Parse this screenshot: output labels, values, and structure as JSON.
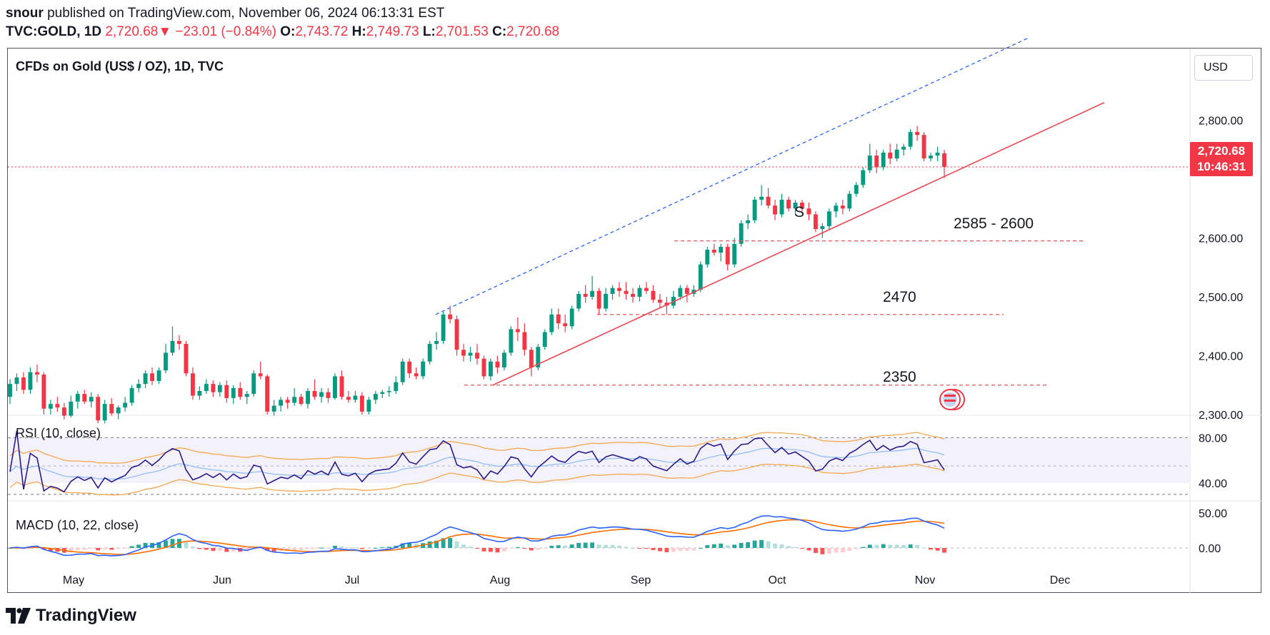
{
  "header": {
    "author": "snour",
    "published": "published on TradingView.com, November 06, 2024 06:13:31 EST",
    "symbol": "TVC:GOLD, 1D",
    "last": "2,720.68",
    "change": "−23.01 (−0.84%)",
    "o_label": "O:",
    "o": "2,743.72",
    "h_label": "H:",
    "h": "2,749.73",
    "l_label": "L:",
    "l": "2,701.53",
    "c_label": "C:",
    "c": "2,720.68"
  },
  "chart_title": "CFDs on Gold (US$ / OZ), 1D, TVC",
  "currency_button": "USD",
  "price_tag": {
    "price": "2,720.68",
    "countdown": "10:46:31"
  },
  "rsi_label": "RSI (10, close)",
  "macd_label": "MACD (10, 22, close)",
  "annotations": {
    "s_mark": "S",
    "zone1": "2585 - 2600",
    "zone2": "2470",
    "zone3": "2350"
  },
  "logo_text": "TradingView",
  "colors": {
    "up": "#089981",
    "down": "#f23645",
    "rsi": "#2a1a8c",
    "band": "#f7a650",
    "macd": "#2962ff",
    "signal": "#ff6d00"
  },
  "chart_data": {
    "type": "candlestick",
    "price_axis": {
      "ticks": [
        2300,
        2400,
        2500,
        2600,
        2700,
        2800
      ],
      "tick_labels": [
        "2,300.00",
        "2,400.00",
        "2,500.00",
        "2,600.00",
        "2,800.00"
      ],
      "range": [
        2265,
        2855
      ]
    },
    "time_axis": [
      "May",
      "Jun",
      "Jul",
      "Aug",
      "Sep",
      "Oct",
      "Nov",
      "Dec"
    ],
    "rsi_axis": [
      "80.00",
      "40.00"
    ],
    "macd_axis": [
      "50.00",
      "0.00"
    ],
    "candles_ohlc": [
      [
        2330,
        2360,
        2318,
        2352
      ],
      [
        2352,
        2370,
        2340,
        2363
      ],
      [
        2363,
        2372,
        2335,
        2342
      ],
      [
        2342,
        2380,
        2335,
        2372
      ],
      [
        2372,
        2385,
        2355,
        2368
      ],
      [
        2368,
        2372,
        2300,
        2310
      ],
      [
        2310,
        2325,
        2300,
        2318
      ],
      [
        2318,
        2330,
        2305,
        2312
      ],
      [
        2312,
        2320,
        2292,
        2298
      ],
      [
        2298,
        2332,
        2295,
        2322
      ],
      [
        2322,
        2340,
        2310,
        2335
      ],
      [
        2335,
        2342,
        2318,
        2322
      ],
      [
        2322,
        2338,
        2312,
        2330
      ],
      [
        2330,
        2335,
        2285,
        2290
      ],
      [
        2290,
        2325,
        2285,
        2318
      ],
      [
        2318,
        2328,
        2298,
        2302
      ],
      [
        2302,
        2315,
        2292,
        2312
      ],
      [
        2312,
        2330,
        2305,
        2320
      ],
      [
        2320,
        2350,
        2315,
        2345
      ],
      [
        2345,
        2360,
        2338,
        2352
      ],
      [
        2352,
        2375,
        2345,
        2370
      ],
      [
        2370,
        2380,
        2350,
        2357
      ],
      [
        2357,
        2380,
        2352,
        2375
      ],
      [
        2375,
        2420,
        2370,
        2405
      ],
      [
        2405,
        2450,
        2400,
        2425
      ],
      [
        2425,
        2435,
        2410,
        2420
      ],
      [
        2420,
        2425,
        2365,
        2370
      ],
      [
        2370,
        2380,
        2325,
        2332
      ],
      [
        2332,
        2348,
        2325,
        2340
      ],
      [
        2340,
        2360,
        2335,
        2352
      ],
      [
        2352,
        2358,
        2330,
        2338
      ],
      [
        2338,
        2355,
        2330,
        2350
      ],
      [
        2350,
        2358,
        2320,
        2328
      ],
      [
        2328,
        2350,
        2318,
        2345
      ],
      [
        2345,
        2355,
        2325,
        2330
      ],
      [
        2330,
        2340,
        2318,
        2335
      ],
      [
        2335,
        2375,
        2330,
        2370
      ],
      [
        2370,
        2390,
        2360,
        2365
      ],
      [
        2365,
        2368,
        2300,
        2305
      ],
      [
        2305,
        2325,
        2298,
        2315
      ],
      [
        2315,
        2330,
        2305,
        2325
      ],
      [
        2325,
        2330,
        2310,
        2320
      ],
      [
        2320,
        2345,
        2315,
        2330
      ],
      [
        2330,
        2335,
        2315,
        2318
      ],
      [
        2318,
        2345,
        2310,
        2340
      ],
      [
        2340,
        2360,
        2325,
        2330
      ],
      [
        2330,
        2345,
        2320,
        2338
      ],
      [
        2338,
        2345,
        2320,
        2328
      ],
      [
        2328,
        2370,
        2325,
        2365
      ],
      [
        2365,
        2375,
        2325,
        2330
      ],
      [
        2330,
        2340,
        2320,
        2325
      ],
      [
        2325,
        2340,
        2320,
        2332
      ],
      [
        2332,
        2338,
        2300,
        2305
      ],
      [
        2305,
        2330,
        2300,
        2325
      ],
      [
        2325,
        2340,
        2318,
        2335
      ],
      [
        2335,
        2342,
        2328,
        2338
      ],
      [
        2338,
        2348,
        2330,
        2340
      ],
      [
        2340,
        2365,
        2335,
        2355
      ],
      [
        2355,
        2395,
        2350,
        2390
      ],
      [
        2390,
        2395,
        2362,
        2370
      ],
      [
        2370,
        2380,
        2360,
        2365
      ],
      [
        2365,
        2395,
        2360,
        2390
      ],
      [
        2390,
        2425,
        2385,
        2420
      ],
      [
        2420,
        2440,
        2410,
        2425
      ],
      [
        2425,
        2475,
        2420,
        2470
      ],
      [
        2470,
        2485,
        2455,
        2462
      ],
      [
        2462,
        2468,
        2400,
        2410
      ],
      [
        2410,
        2420,
        2390,
        2400
      ],
      [
        2400,
        2415,
        2390,
        2405
      ],
      [
        2405,
        2420,
        2385,
        2395
      ],
      [
        2395,
        2400,
        2360,
        2365
      ],
      [
        2365,
        2395,
        2358,
        2390
      ],
      [
        2390,
        2400,
        2370,
        2380
      ],
      [
        2380,
        2410,
        2375,
        2405
      ],
      [
        2405,
        2450,
        2400,
        2445
      ],
      [
        2445,
        2465,
        2425,
        2440
      ],
      [
        2440,
        2455,
        2400,
        2410
      ],
      [
        2410,
        2415,
        2365,
        2380
      ],
      [
        2380,
        2420,
        2375,
        2415
      ],
      [
        2415,
        2445,
        2410,
        2440
      ],
      [
        2440,
        2480,
        2435,
        2470
      ],
      [
        2470,
        2480,
        2445,
        2455
      ],
      [
        2455,
        2470,
        2440,
        2450
      ],
      [
        2450,
        2485,
        2445,
        2480
      ],
      [
        2480,
        2510,
        2475,
        2505
      ],
      [
        2505,
        2520,
        2490,
        2500
      ],
      [
        2500,
        2535,
        2495,
        2510
      ],
      [
        2510,
        2515,
        2470,
        2480
      ],
      [
        2480,
        2515,
        2475,
        2505
      ],
      [
        2505,
        2520,
        2495,
        2515
      ],
      [
        2515,
        2525,
        2500,
        2510
      ],
      [
        2510,
        2525,
        2495,
        2505
      ],
      [
        2505,
        2515,
        2490,
        2500
      ],
      [
        2500,
        2520,
        2492,
        2515
      ],
      [
        2515,
        2525,
        2505,
        2510
      ],
      [
        2510,
        2520,
        2490,
        2495
      ],
      [
        2495,
        2505,
        2480,
        2490
      ],
      [
        2490,
        2500,
        2470,
        2485
      ],
      [
        2485,
        2510,
        2480,
        2500
      ],
      [
        2500,
        2520,
        2495,
        2515
      ],
      [
        2515,
        2520,
        2490,
        2505
      ],
      [
        2505,
        2520,
        2500,
        2512
      ],
      [
        2512,
        2560,
        2508,
        2555
      ],
      [
        2555,
        2585,
        2550,
        2580
      ],
      [
        2580,
        2590,
        2570,
        2575
      ],
      [
        2575,
        2590,
        2560,
        2585
      ],
      [
        2585,
        2590,
        2545,
        2555
      ],
      [
        2555,
        2600,
        2550,
        2590
      ],
      [
        2590,
        2630,
        2585,
        2625
      ],
      [
        2625,
        2640,
        2615,
        2630
      ],
      [
        2630,
        2670,
        2625,
        2665
      ],
      [
        2665,
        2690,
        2655,
        2670
      ],
      [
        2670,
        2685,
        2650,
        2655
      ],
      [
        2655,
        2665,
        2630,
        2640
      ],
      [
        2640,
        2675,
        2635,
        2665
      ],
      [
        2665,
        2670,
        2645,
        2650
      ],
      [
        2650,
        2665,
        2640,
        2660
      ],
      [
        2660,
        2665,
        2645,
        2650
      ],
      [
        2650,
        2660,
        2630,
        2640
      ],
      [
        2640,
        2645,
        2610,
        2615
      ],
      [
        2615,
        2625,
        2600,
        2620
      ],
      [
        2620,
        2650,
        2615,
        2645
      ],
      [
        2645,
        2660,
        2635,
        2655
      ],
      [
        2655,
        2665,
        2640,
        2650
      ],
      [
        2650,
        2680,
        2645,
        2675
      ],
      [
        2675,
        2695,
        2670,
        2690
      ],
      [
        2690,
        2720,
        2685,
        2715
      ],
      [
        2715,
        2760,
        2710,
        2740
      ],
      [
        2740,
        2750,
        2710,
        2720
      ],
      [
        2720,
        2750,
        2715,
        2745
      ],
      [
        2745,
        2760,
        2725,
        2735
      ],
      [
        2735,
        2760,
        2730,
        2750
      ],
      [
        2750,
        2760,
        2740,
        2755
      ],
      [
        2755,
        2785,
        2750,
        2780
      ],
      [
        2780,
        2790,
        2765,
        2775
      ],
      [
        2775,
        2780,
        2730,
        2735
      ],
      [
        2735,
        2745,
        2730,
        2740
      ],
      [
        2740,
        2755,
        2730,
        2745
      ],
      [
        2743.72,
        2749.73,
        2701.53,
        2720.68
      ]
    ],
    "levels": [
      2595,
      2470,
      2350
    ]
  }
}
